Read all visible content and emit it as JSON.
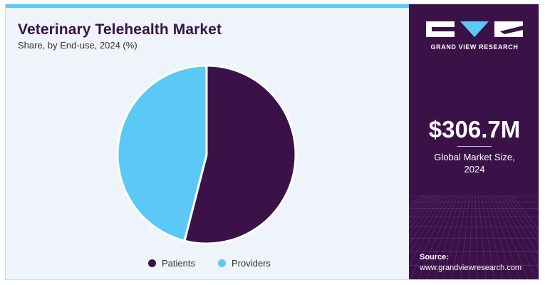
{
  "chart_data": {
    "type": "pie",
    "title": "Veterinary Telehealth Market",
    "subtitle": "Share, by End-use, 2024 (%)",
    "categories": [
      "Patients",
      "Providers"
    ],
    "values": [
      54,
      46
    ],
    "colors": [
      "#3a1248",
      "#5bc8f5"
    ],
    "legend_position": "bottom",
    "start_angle": "12 o'clock",
    "direction": "clockwise"
  },
  "sidebar": {
    "brand": "GRAND VIEW RESEARCH",
    "market_size": "$306.7M",
    "market_size_label_line1": "Global Market Size,",
    "market_size_label_line2": "2024",
    "source_label": "Source:",
    "source_url": "www.grandviewresearch.com"
  },
  "colors": {
    "accent": "#5bc8f5",
    "panel": "#3a1248",
    "card_background": "#eef4f9"
  }
}
